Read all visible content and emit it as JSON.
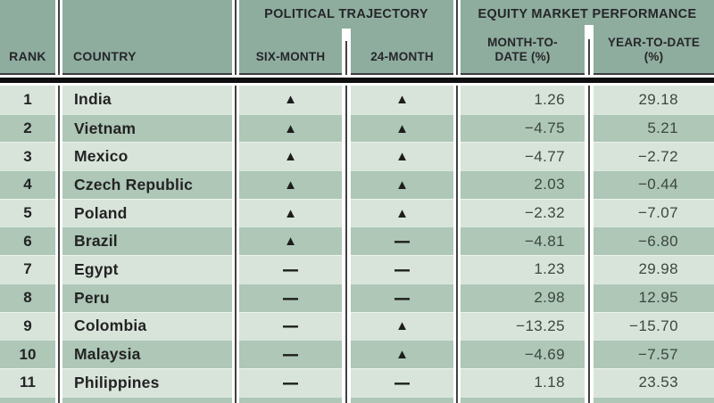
{
  "chart_data": {
    "type": "table",
    "header": {
      "rank": "RANK",
      "country": "COUNTRY",
      "political_group": "POLITICAL TRAJECTORY",
      "six_month": "SIX-MONTH",
      "twenty_four_month": "24-MONTH",
      "equity_group": "EQUITY MARKET PERFORMANCE",
      "mtd_line1": "MONTH-TO-",
      "mtd_line2": "DATE (%)",
      "ytd_line1": "YEAR-TO-DATE",
      "ytd_line2": "(%)"
    },
    "rows": [
      {
        "rank": "1",
        "country": "India",
        "six_month": "up",
        "twenty_four_month": "up",
        "mtd": "1.26",
        "ytd": "29.18"
      },
      {
        "rank": "2",
        "country": "Vietnam",
        "six_month": "up",
        "twenty_four_month": "up",
        "mtd": "−4.75",
        "ytd": "5.21"
      },
      {
        "rank": "3",
        "country": "Mexico",
        "six_month": "up",
        "twenty_four_month": "up",
        "mtd": "−4.77",
        "ytd": "−2.72"
      },
      {
        "rank": "4",
        "country": "Czech Republic",
        "six_month": "up",
        "twenty_four_month": "up",
        "mtd": "2.03",
        "ytd": "−0.44"
      },
      {
        "rank": "5",
        "country": "Poland",
        "six_month": "up",
        "twenty_four_month": "up",
        "mtd": "−2.32",
        "ytd": "−7.07"
      },
      {
        "rank": "6",
        "country": "Brazil",
        "six_month": "up",
        "twenty_four_month": "flat",
        "mtd": "−4.81",
        "ytd": "−6.80"
      },
      {
        "rank": "7",
        "country": "Egypt",
        "six_month": "flat",
        "twenty_four_month": "flat",
        "mtd": "1.23",
        "ytd": "29.98"
      },
      {
        "rank": "8",
        "country": "Peru",
        "six_month": "flat",
        "twenty_four_month": "flat",
        "mtd": "2.98",
        "ytd": "12.95"
      },
      {
        "rank": "9",
        "country": "Colombia",
        "six_month": "flat",
        "twenty_four_month": "up",
        "mtd": "−13.25",
        "ytd": "−15.70"
      },
      {
        "rank": "10",
        "country": "Malaysia",
        "six_month": "flat",
        "twenty_four_month": "up",
        "mtd": "−4.69",
        "ytd": "−7.57"
      },
      {
        "rank": "11",
        "country": "Philippines",
        "six_month": "flat",
        "twenty_four_month": "flat",
        "mtd": "1.18",
        "ytd": "23.53"
      }
    ]
  },
  "icons": {
    "up": "▲",
    "flat": "—"
  },
  "colors": {
    "header_bg": "#8ead9e",
    "row_light": "#d8e4da",
    "row_dark": "#aec7b7",
    "heavy_rule": "#0e0e0e",
    "divider_line": "#414141",
    "header_text": "#26262a",
    "number_text": "#3c463f"
  }
}
